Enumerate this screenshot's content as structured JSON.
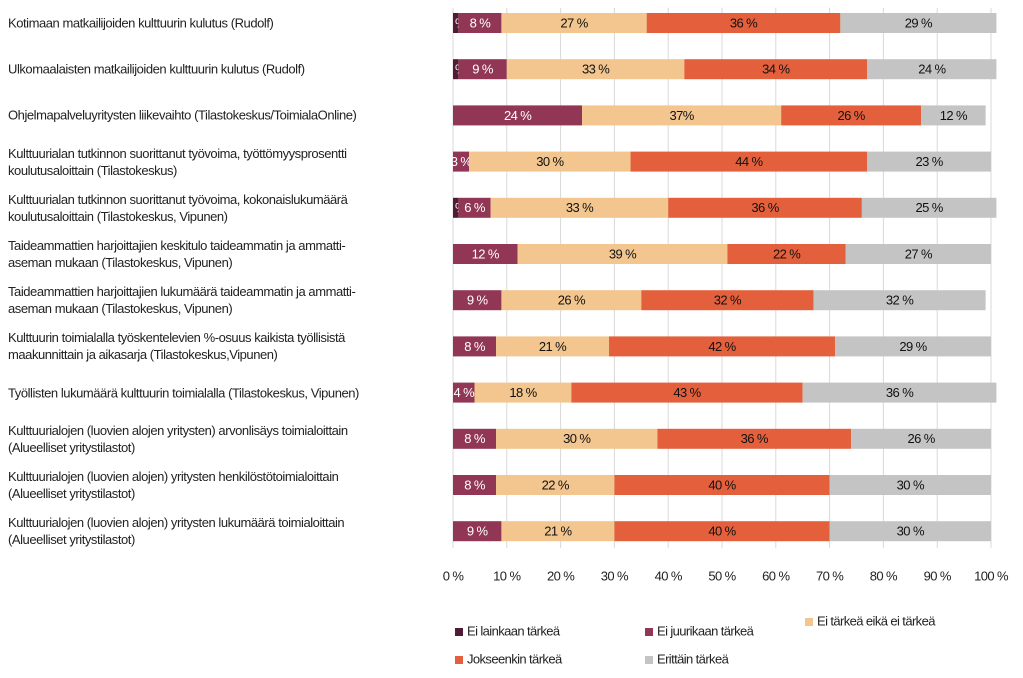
{
  "chart_data": {
    "type": "stacked-barh",
    "categories": [
      "Kotimaan matkailijoiden kulttuurin kulutus (Rudolf)",
      "Ulkomaalaisten matkailijoiden kulttuurin kulutus (Rudolf)",
      "Ohjelmapalveluyritysten liikevaihto (Tilastokeskus/ToimialaOnline)",
      "Kulttuurialan tutkinnon suorittanut työvoima, työttömyysprosentti\nkoulutusaloittain (Tilastokeskus)",
      "Kulttuurialan tutkinnon suorittanut työvoima, kokonaislukumäärä\nkoulutusaloittain (Tilastokeskus, Vipunen)",
      "Taideammattien harjoittajien keskitulo taideammatin ja ammatti-\naseman mukaan (Tilastokeskus, Vipunen)",
      "Taideammattien harjoittajien lukumäärä taideammatin ja ammatti-\naseman mukaan (Tilastokeskus, Vipunen)",
      "Kulttuurin toimialalla työskentelevien %-osuus kaikista työllisistä\nmaakunnittain ja aikasarja (Tilastokeskus,Vipunen)",
      "Työllisten lukumäärä kulttuurin toimialalla (Tilastokeskus, Vipunen)",
      "Kulttuurialojen (luovien alojen yritysten) arvonlisäys toimialoittain\n(Alueelliset yritystilastot)",
      "Kulttuurialojen (luovien alojen) yritysten henkilöstötoimialoittain\n(Alueelliset yritystilastot)",
      "Kulttuurialojen (luovien alojen) yritysten lukumäärä toimialoittain\n(Alueelliset yritystilastot)"
    ],
    "series": [
      {
        "name": "Ei lainkaan tärkeä",
        "color": "#4f1c33",
        "values": [
          1,
          1,
          null,
          null,
          1,
          null,
          null,
          null,
          null,
          null,
          null,
          null
        ],
        "value_labels": [
          "1 %",
          "1 %",
          null,
          null,
          "1 %",
          null,
          null,
          null,
          null,
          null,
          null,
          null
        ]
      },
      {
        "name": "Ei juurikaan tärkeä",
        "color": "#913654",
        "values": [
          8,
          9,
          24,
          3,
          6,
          12,
          9,
          8,
          4,
          8,
          8,
          9
        ],
        "value_labels": [
          "8 %",
          "9 %",
          "24 %",
          "3 %",
          "6 %",
          "12 %",
          "9 %",
          "8 %",
          "4 %",
          "8 %",
          "8 %",
          "9 %"
        ]
      },
      {
        "name": "Ei tärkeä eikä ei tärkeä",
        "color": "#f2c68e",
        "values": [
          27,
          33,
          37,
          30,
          33,
          39,
          26,
          21,
          18,
          30,
          22,
          21
        ],
        "value_labels": [
          "27 %",
          "33 %",
          "37%",
          "30 %",
          "33 %",
          "39 %",
          "26 %",
          "21 %",
          "18 %",
          "30 %",
          "22 %",
          "21 %"
        ]
      },
      {
        "name": "Jokseenkin tärkeä",
        "color": "#e4603d",
        "values": [
          36,
          34,
          26,
          44,
          36,
          22,
          32,
          42,
          43,
          36,
          40,
          40
        ],
        "value_labels": [
          "36 %",
          "34 %",
          "26 %",
          "44 %",
          "36 %",
          "22 %",
          "32 %",
          "42 %",
          "43 %",
          "36 %",
          "40 %",
          "40 %"
        ]
      },
      {
        "name": "Erittäin tärkeä",
        "color": "#c4c4c4",
        "values": [
          29,
          24,
          12,
          23,
          25,
          27,
          32,
          29,
          36,
          26,
          30,
          30
        ],
        "value_labels": [
          "29 %",
          "24 %",
          "12 %",
          "23 %",
          "25 %",
          "27 %",
          "32 %",
          "29 %",
          "36 %",
          "26 %",
          "30 %",
          "30 %"
        ]
      }
    ],
    "xlim": [
      0,
      100
    ],
    "xticks": [
      {
        "value": 0,
        "label": "0 %"
      },
      {
        "value": 10,
        "label": "10 %"
      },
      {
        "value": 20,
        "label": "20 %"
      },
      {
        "value": 30,
        "label": "30 %"
      },
      {
        "value": 40,
        "label": "40 %"
      },
      {
        "value": 50,
        "label": "50 %"
      },
      {
        "value": 60,
        "label": "60 %"
      },
      {
        "value": 70,
        "label": "70 %"
      },
      {
        "value": 80,
        "label": "80 %"
      },
      {
        "value": 90,
        "label": "90 %"
      },
      {
        "value": 100,
        "label": "100 %"
      }
    ],
    "grid": true
  }
}
